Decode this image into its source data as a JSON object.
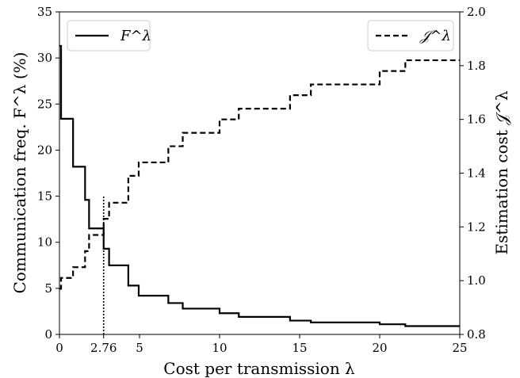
{
  "chart_data": {
    "type": "line",
    "xlabel": "Cost per transmission λ",
    "ylabel_left": "Communication freq. F^λ (%)",
    "ylabel_right": "Estimation cost 𝒥^λ",
    "xlim": [
      0,
      25
    ],
    "ylim_left": [
      0,
      35
    ],
    "ylim_right": [
      0.8,
      2.0
    ],
    "x_ticks": [
      "0",
      "2.76",
      "5",
      "10",
      "15",
      "20",
      "25"
    ],
    "y_left_ticks": [
      "0",
      "5",
      "10",
      "15",
      "20",
      "25",
      "30",
      "35"
    ],
    "y_right_ticks": [
      "0.8",
      "1.0",
      "1.2",
      "1.4",
      "1.6",
      "1.8",
      "2.0"
    ],
    "grid": false,
    "marker_line": {
      "x": 2.76,
      "y_top": 15
    },
    "legend_left": {
      "placement": "top-left",
      "label": "F^λ"
    },
    "legend_right": {
      "placement": "top-right",
      "label": "𝒥^λ"
    },
    "series": [
      {
        "name": "F^λ",
        "axis": "left",
        "style": "solid",
        "points": [
          [
            0,
            31.3
          ],
          [
            0.1,
            31.3
          ],
          [
            0.1,
            23.4
          ],
          [
            0.85,
            23.4
          ],
          [
            0.85,
            18.2
          ],
          [
            1.6,
            18.2
          ],
          [
            1.6,
            14.6
          ],
          [
            1.85,
            14.6
          ],
          [
            1.85,
            11.5
          ],
          [
            2.76,
            11.5
          ],
          [
            2.76,
            9.3
          ],
          [
            3.1,
            9.3
          ],
          [
            3.1,
            7.5
          ],
          [
            4.3,
            7.5
          ],
          [
            4.3,
            5.3
          ],
          [
            4.95,
            5.3
          ],
          [
            4.95,
            4.2
          ],
          [
            6.8,
            4.2
          ],
          [
            6.8,
            3.4
          ],
          [
            7.7,
            3.4
          ],
          [
            7.7,
            2.8
          ],
          [
            10.0,
            2.8
          ],
          [
            10.0,
            2.3
          ],
          [
            11.2,
            2.3
          ],
          [
            11.2,
            1.9
          ],
          [
            14.4,
            1.9
          ],
          [
            14.4,
            1.5
          ],
          [
            15.7,
            1.5
          ],
          [
            15.7,
            1.3
          ],
          [
            20.0,
            1.3
          ],
          [
            20.0,
            1.1
          ],
          [
            21.6,
            1.1
          ],
          [
            21.6,
            0.9
          ],
          [
            25,
            0.9
          ]
        ]
      },
      {
        "name": "𝒥^λ",
        "axis": "right",
        "style": "dashed",
        "points": [
          [
            0,
            0.97
          ],
          [
            0.1,
            0.97
          ],
          [
            0.1,
            1.01
          ],
          [
            0.85,
            1.01
          ],
          [
            0.85,
            1.05
          ],
          [
            1.6,
            1.05
          ],
          [
            1.6,
            1.11
          ],
          [
            1.85,
            1.11
          ],
          [
            1.85,
            1.17
          ],
          [
            2.76,
            1.17
          ],
          [
            2.76,
            1.23
          ],
          [
            3.1,
            1.23
          ],
          [
            3.1,
            1.29
          ],
          [
            4.3,
            1.29
          ],
          [
            4.3,
            1.39
          ],
          [
            4.95,
            1.39
          ],
          [
            4.95,
            1.44
          ],
          [
            6.8,
            1.44
          ],
          [
            6.8,
            1.5
          ],
          [
            7.7,
            1.5
          ],
          [
            7.7,
            1.55
          ],
          [
            10.0,
            1.55
          ],
          [
            10.0,
            1.6
          ],
          [
            11.2,
            1.6
          ],
          [
            11.2,
            1.64
          ],
          [
            14.4,
            1.64
          ],
          [
            14.4,
            1.69
          ],
          [
            15.7,
            1.69
          ],
          [
            15.7,
            1.73
          ],
          [
            20.0,
            1.73
          ],
          [
            20.0,
            1.78
          ],
          [
            21.6,
            1.78
          ],
          [
            21.6,
            1.82
          ],
          [
            25,
            1.82
          ]
        ]
      }
    ]
  }
}
